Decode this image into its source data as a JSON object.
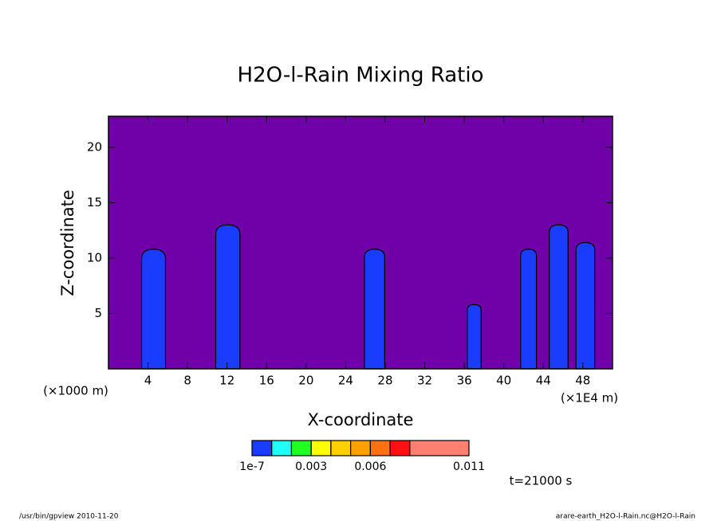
{
  "chart_data": {
    "type": "contour",
    "title": "H2O-l-Rain Mixing Ratio",
    "x_label": "X-coordinate",
    "y_label": "Z-coordinate",
    "x_unit": "(×1000 m)",
    "x_unit_right": "(×1E4 m)",
    "xlim": [
      0,
      51
    ],
    "xticks": [
      4,
      8,
      12,
      16,
      20,
      24,
      28,
      32,
      36,
      40,
      44,
      48
    ],
    "ylim": [
      0,
      22.8
    ],
    "yticks": [
      5,
      10,
      15,
      20
    ],
    "background": "#7000a8",
    "cell_color": "#1a3cff",
    "cells": {
      "x_left": [
        3.35,
        10.85,
        25.9,
        36.3,
        41.7,
        44.6,
        47.3
      ],
      "x_right": [
        5.77,
        13.3,
        27.95,
        37.7,
        43.3,
        46.5,
        49.2
      ],
      "top": [
        10.8,
        13.0,
        10.8,
        5.8,
        10.8,
        13.0,
        11.4
      ]
    },
    "colorbar": {
      "levels": [
        1e-07,
        0.001,
        0.002,
        0.003,
        0.004,
        0.005,
        0.006,
        0.007,
        0.008,
        0.011
      ],
      "colors": [
        "#1a3cff",
        "#20ffff",
        "#20ff20",
        "#ffff00",
        "#ffd000",
        "#ffa000",
        "#ff7010",
        "#ff1010",
        "#ff8070"
      ],
      "ticks": [
        1e-07,
        0.003,
        0.006,
        0.011
      ]
    },
    "time_label": "t=21000 s",
    "footer_left": "/usr/bin/gpview  2010-11-20",
    "footer_right": "arare-earth_H2O-l-Rain.nc@H2O-l-Rain"
  }
}
